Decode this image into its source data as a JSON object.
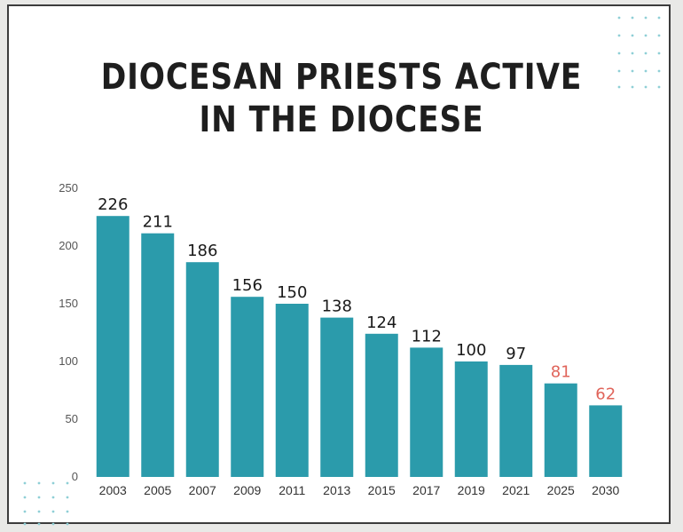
{
  "chart_data": {
    "type": "bar",
    "title_lines": [
      "DIOCESAN PRIESTS ACTIVE",
      "IN THE DIOCESE"
    ],
    "categories": [
      "2003",
      "2005",
      "2007",
      "2009",
      "2011",
      "2013",
      "2015",
      "2017",
      "2019",
      "2021",
      "2025",
      "2030"
    ],
    "values": [
      226,
      211,
      186,
      156,
      150,
      138,
      124,
      112,
      100,
      97,
      81,
      62
    ],
    "projected": [
      false,
      false,
      false,
      false,
      false,
      false,
      false,
      false,
      false,
      false,
      true,
      true
    ],
    "ylim": [
      0,
      250
    ],
    "yticks": [
      0,
      50,
      100,
      150,
      200,
      250
    ],
    "xlabel": "",
    "ylabel": "",
    "grid": false,
    "colors": {
      "bar": "#2b9bab",
      "label": "#1a1a1a",
      "projected_label": "#e0645a",
      "axis_text": "#555555"
    }
  }
}
